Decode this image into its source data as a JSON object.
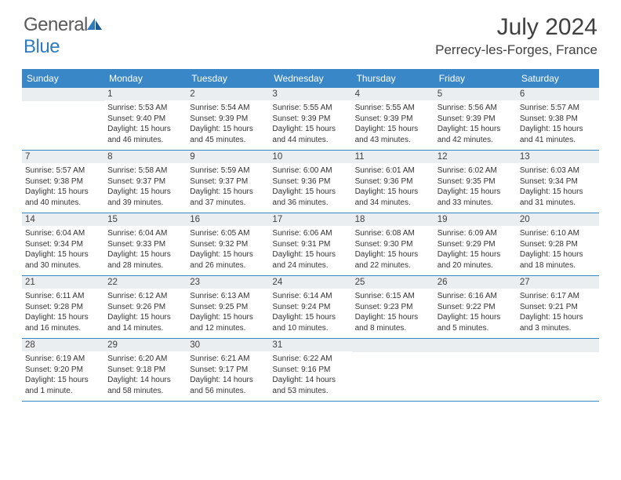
{
  "brand": {
    "part1": "General",
    "part2": "Blue"
  },
  "title": "July 2024",
  "location": "Perrecy-les-Forges, France",
  "colors": {
    "header_bg": "#3a87c7",
    "header_text": "#ffffff",
    "daynum_bg": "#ebeef0",
    "text": "#333333",
    "border": "#3a87c7",
    "brand_gray": "#5a5a5a",
    "brand_blue": "#2f7bbf"
  },
  "typography": {
    "title_fontsize": 30,
    "location_fontsize": 17,
    "header_fontsize": 12,
    "daynum_fontsize": 11.5,
    "body_fontsize": 10
  },
  "day_headers": [
    "Sunday",
    "Monday",
    "Tuesday",
    "Wednesday",
    "Thursday",
    "Friday",
    "Saturday"
  ],
  "weeks": [
    [
      {
        "n": "",
        "sr": "",
        "ss": "",
        "d1": "",
        "d2": ""
      },
      {
        "n": "1",
        "sr": "Sunrise: 5:53 AM",
        "ss": "Sunset: 9:40 PM",
        "d1": "Daylight: 15 hours",
        "d2": "and 46 minutes."
      },
      {
        "n": "2",
        "sr": "Sunrise: 5:54 AM",
        "ss": "Sunset: 9:39 PM",
        "d1": "Daylight: 15 hours",
        "d2": "and 45 minutes."
      },
      {
        "n": "3",
        "sr": "Sunrise: 5:55 AM",
        "ss": "Sunset: 9:39 PM",
        "d1": "Daylight: 15 hours",
        "d2": "and 44 minutes."
      },
      {
        "n": "4",
        "sr": "Sunrise: 5:55 AM",
        "ss": "Sunset: 9:39 PM",
        "d1": "Daylight: 15 hours",
        "d2": "and 43 minutes."
      },
      {
        "n": "5",
        "sr": "Sunrise: 5:56 AM",
        "ss": "Sunset: 9:39 PM",
        "d1": "Daylight: 15 hours",
        "d2": "and 42 minutes."
      },
      {
        "n": "6",
        "sr": "Sunrise: 5:57 AM",
        "ss": "Sunset: 9:38 PM",
        "d1": "Daylight: 15 hours",
        "d2": "and 41 minutes."
      }
    ],
    [
      {
        "n": "7",
        "sr": "Sunrise: 5:57 AM",
        "ss": "Sunset: 9:38 PM",
        "d1": "Daylight: 15 hours",
        "d2": "and 40 minutes."
      },
      {
        "n": "8",
        "sr": "Sunrise: 5:58 AM",
        "ss": "Sunset: 9:37 PM",
        "d1": "Daylight: 15 hours",
        "d2": "and 39 minutes."
      },
      {
        "n": "9",
        "sr": "Sunrise: 5:59 AM",
        "ss": "Sunset: 9:37 PM",
        "d1": "Daylight: 15 hours",
        "d2": "and 37 minutes."
      },
      {
        "n": "10",
        "sr": "Sunrise: 6:00 AM",
        "ss": "Sunset: 9:36 PM",
        "d1": "Daylight: 15 hours",
        "d2": "and 36 minutes."
      },
      {
        "n": "11",
        "sr": "Sunrise: 6:01 AM",
        "ss": "Sunset: 9:36 PM",
        "d1": "Daylight: 15 hours",
        "d2": "and 34 minutes."
      },
      {
        "n": "12",
        "sr": "Sunrise: 6:02 AM",
        "ss": "Sunset: 9:35 PM",
        "d1": "Daylight: 15 hours",
        "d2": "and 33 minutes."
      },
      {
        "n": "13",
        "sr": "Sunrise: 6:03 AM",
        "ss": "Sunset: 9:34 PM",
        "d1": "Daylight: 15 hours",
        "d2": "and 31 minutes."
      }
    ],
    [
      {
        "n": "14",
        "sr": "Sunrise: 6:04 AM",
        "ss": "Sunset: 9:34 PM",
        "d1": "Daylight: 15 hours",
        "d2": "and 30 minutes."
      },
      {
        "n": "15",
        "sr": "Sunrise: 6:04 AM",
        "ss": "Sunset: 9:33 PM",
        "d1": "Daylight: 15 hours",
        "d2": "and 28 minutes."
      },
      {
        "n": "16",
        "sr": "Sunrise: 6:05 AM",
        "ss": "Sunset: 9:32 PM",
        "d1": "Daylight: 15 hours",
        "d2": "and 26 minutes."
      },
      {
        "n": "17",
        "sr": "Sunrise: 6:06 AM",
        "ss": "Sunset: 9:31 PM",
        "d1": "Daylight: 15 hours",
        "d2": "and 24 minutes."
      },
      {
        "n": "18",
        "sr": "Sunrise: 6:08 AM",
        "ss": "Sunset: 9:30 PM",
        "d1": "Daylight: 15 hours",
        "d2": "and 22 minutes."
      },
      {
        "n": "19",
        "sr": "Sunrise: 6:09 AM",
        "ss": "Sunset: 9:29 PM",
        "d1": "Daylight: 15 hours",
        "d2": "and 20 minutes."
      },
      {
        "n": "20",
        "sr": "Sunrise: 6:10 AM",
        "ss": "Sunset: 9:28 PM",
        "d1": "Daylight: 15 hours",
        "d2": "and 18 minutes."
      }
    ],
    [
      {
        "n": "21",
        "sr": "Sunrise: 6:11 AM",
        "ss": "Sunset: 9:28 PM",
        "d1": "Daylight: 15 hours",
        "d2": "and 16 minutes."
      },
      {
        "n": "22",
        "sr": "Sunrise: 6:12 AM",
        "ss": "Sunset: 9:26 PM",
        "d1": "Daylight: 15 hours",
        "d2": "and 14 minutes."
      },
      {
        "n": "23",
        "sr": "Sunrise: 6:13 AM",
        "ss": "Sunset: 9:25 PM",
        "d1": "Daylight: 15 hours",
        "d2": "and 12 minutes."
      },
      {
        "n": "24",
        "sr": "Sunrise: 6:14 AM",
        "ss": "Sunset: 9:24 PM",
        "d1": "Daylight: 15 hours",
        "d2": "and 10 minutes."
      },
      {
        "n": "25",
        "sr": "Sunrise: 6:15 AM",
        "ss": "Sunset: 9:23 PM",
        "d1": "Daylight: 15 hours",
        "d2": "and 8 minutes."
      },
      {
        "n": "26",
        "sr": "Sunrise: 6:16 AM",
        "ss": "Sunset: 9:22 PM",
        "d1": "Daylight: 15 hours",
        "d2": "and 5 minutes."
      },
      {
        "n": "27",
        "sr": "Sunrise: 6:17 AM",
        "ss": "Sunset: 9:21 PM",
        "d1": "Daylight: 15 hours",
        "d2": "and 3 minutes."
      }
    ],
    [
      {
        "n": "28",
        "sr": "Sunrise: 6:19 AM",
        "ss": "Sunset: 9:20 PM",
        "d1": "Daylight: 15 hours",
        "d2": "and 1 minute."
      },
      {
        "n": "29",
        "sr": "Sunrise: 6:20 AM",
        "ss": "Sunset: 9:18 PM",
        "d1": "Daylight: 14 hours",
        "d2": "and 58 minutes."
      },
      {
        "n": "30",
        "sr": "Sunrise: 6:21 AM",
        "ss": "Sunset: 9:17 PM",
        "d1": "Daylight: 14 hours",
        "d2": "and 56 minutes."
      },
      {
        "n": "31",
        "sr": "Sunrise: 6:22 AM",
        "ss": "Sunset: 9:16 PM",
        "d1": "Daylight: 14 hours",
        "d2": "and 53 minutes."
      },
      {
        "n": "",
        "sr": "",
        "ss": "",
        "d1": "",
        "d2": ""
      },
      {
        "n": "",
        "sr": "",
        "ss": "",
        "d1": "",
        "d2": ""
      },
      {
        "n": "",
        "sr": "",
        "ss": "",
        "d1": "",
        "d2": ""
      }
    ]
  ]
}
